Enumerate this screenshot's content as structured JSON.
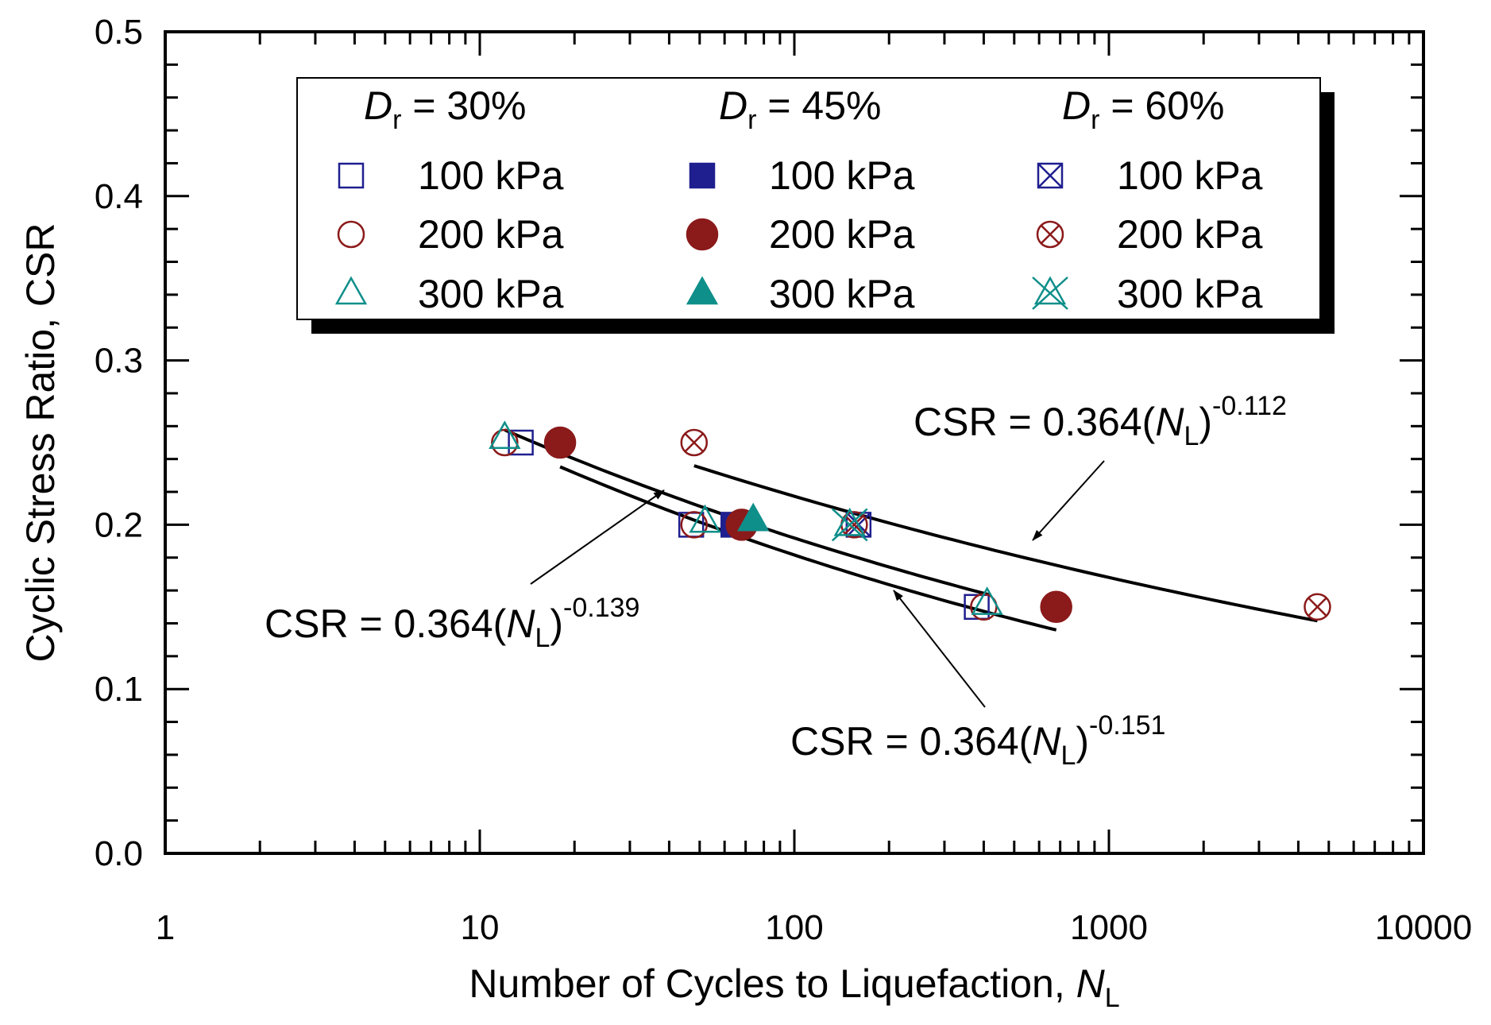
{
  "chart_data": {
    "type": "scatter",
    "x_scale": "log",
    "xlim": [
      1,
      10000
    ],
    "ylim": [
      0.0,
      0.5
    ],
    "xticks": [
      "1",
      "10",
      "100",
      "1000",
      "10000"
    ],
    "yticks": [
      "0.0",
      "0.1",
      "0.2",
      "0.3",
      "0.4",
      "0.5"
    ],
    "xlabel_main": "Number of Cycles to Liquefaction, ",
    "xlabel_symbol": "N",
    "xlabel_sub": "L",
    "ylabel": "Cyclic Stress Ratio, CSR",
    "grid": false,
    "legend": {
      "groups": [
        {
          "dr_symbol": "D",
          "dr_sub": "r",
          "dr_text": " = 30%"
        },
        {
          "dr_symbol": "D",
          "dr_sub": "r",
          "dr_text": " = 45%"
        },
        {
          "dr_symbol": "D",
          "dr_sub": "r",
          "dr_text": " = 60%"
        }
      ],
      "pressures": [
        "100 kPa",
        "200 kPa",
        "300 kPa"
      ]
    },
    "colors": {
      "p100": "#1f1f8f",
      "p200": "#8b1a1a",
      "p300": "#0f8f8a",
      "line": "#000000"
    },
    "series": [
      {
        "name": "Dr 30% - 100 kPa",
        "dr": 30,
        "pressure": 100,
        "marker": "square-open",
        "x": [
          13.5,
          47,
          380
        ],
        "y": [
          0.25,
          0.2,
          0.15
        ]
      },
      {
        "name": "Dr 30% - 200 kPa",
        "dr": 30,
        "pressure": 200,
        "marker": "circle-open",
        "x": [
          12,
          48,
          400
        ],
        "y": [
          0.25,
          0.2,
          0.15
        ]
      },
      {
        "name": "Dr 30% - 300 kPa",
        "dr": 30,
        "pressure": 300,
        "marker": "triangle-open",
        "x": [
          12,
          52,
          410
        ],
        "y": [
          0.253,
          0.202,
          0.152
        ]
      },
      {
        "name": "Dr 45% - 100 kPa",
        "dr": 45,
        "pressure": 100,
        "marker": "square-filled",
        "x": [
          64
        ],
        "y": [
          0.2
        ]
      },
      {
        "name": "Dr 45% - 200 kPa",
        "dr": 45,
        "pressure": 200,
        "marker": "circle-filled",
        "x": [
          18,
          68,
          680
        ],
        "y": [
          0.25,
          0.2,
          0.15
        ]
      },
      {
        "name": "Dr 45% - 300 kPa",
        "dr": 45,
        "pressure": 300,
        "marker": "triangle-filled",
        "x": [
          74
        ],
        "y": [
          0.203
        ]
      },
      {
        "name": "Dr 60% - 100 kPa",
        "dr": 60,
        "pressure": 100,
        "marker": "square-x",
        "x": [
          160
        ],
        "y": [
          0.2
        ]
      },
      {
        "name": "Dr 60% - 200 kPa",
        "dr": 60,
        "pressure": 200,
        "marker": "circle-x",
        "x": [
          48,
          155,
          4600
        ],
        "y": [
          0.25,
          0.2,
          0.15
        ]
      },
      {
        "name": "Dr 60% - 300 kPa",
        "dr": 60,
        "pressure": 300,
        "marker": "triangle-x",
        "x": [
          150
        ],
        "y": [
          0.2
        ]
      }
    ],
    "fits": [
      {
        "name": "fit-0139",
        "coef": 0.364,
        "exp": -0.139,
        "x_range": [
          12,
          420
        ]
      },
      {
        "name": "fit-0151",
        "coef": 0.364,
        "exp": -0.151,
        "x_range": [
          18,
          680
        ]
      },
      {
        "name": "fit-0112",
        "coef": 0.364,
        "exp": -0.112,
        "x_range": [
          48,
          4600
        ]
      }
    ],
    "annotations": [
      {
        "name": "ann-0112",
        "prefix": "CSR = 0.364(",
        "symbol": "N",
        "sub": "L",
        "close": ")",
        "exp": "-0.112"
      },
      {
        "name": "ann-0139",
        "prefix": "CSR = 0.364(",
        "symbol": "N",
        "sub": "L",
        "close": ")",
        "exp": "-0.139"
      },
      {
        "name": "ann-0151",
        "prefix": "CSR = 0.364(",
        "symbol": "N",
        "sub": "L",
        "close": ")",
        "exp": "-0.151"
      }
    ]
  }
}
